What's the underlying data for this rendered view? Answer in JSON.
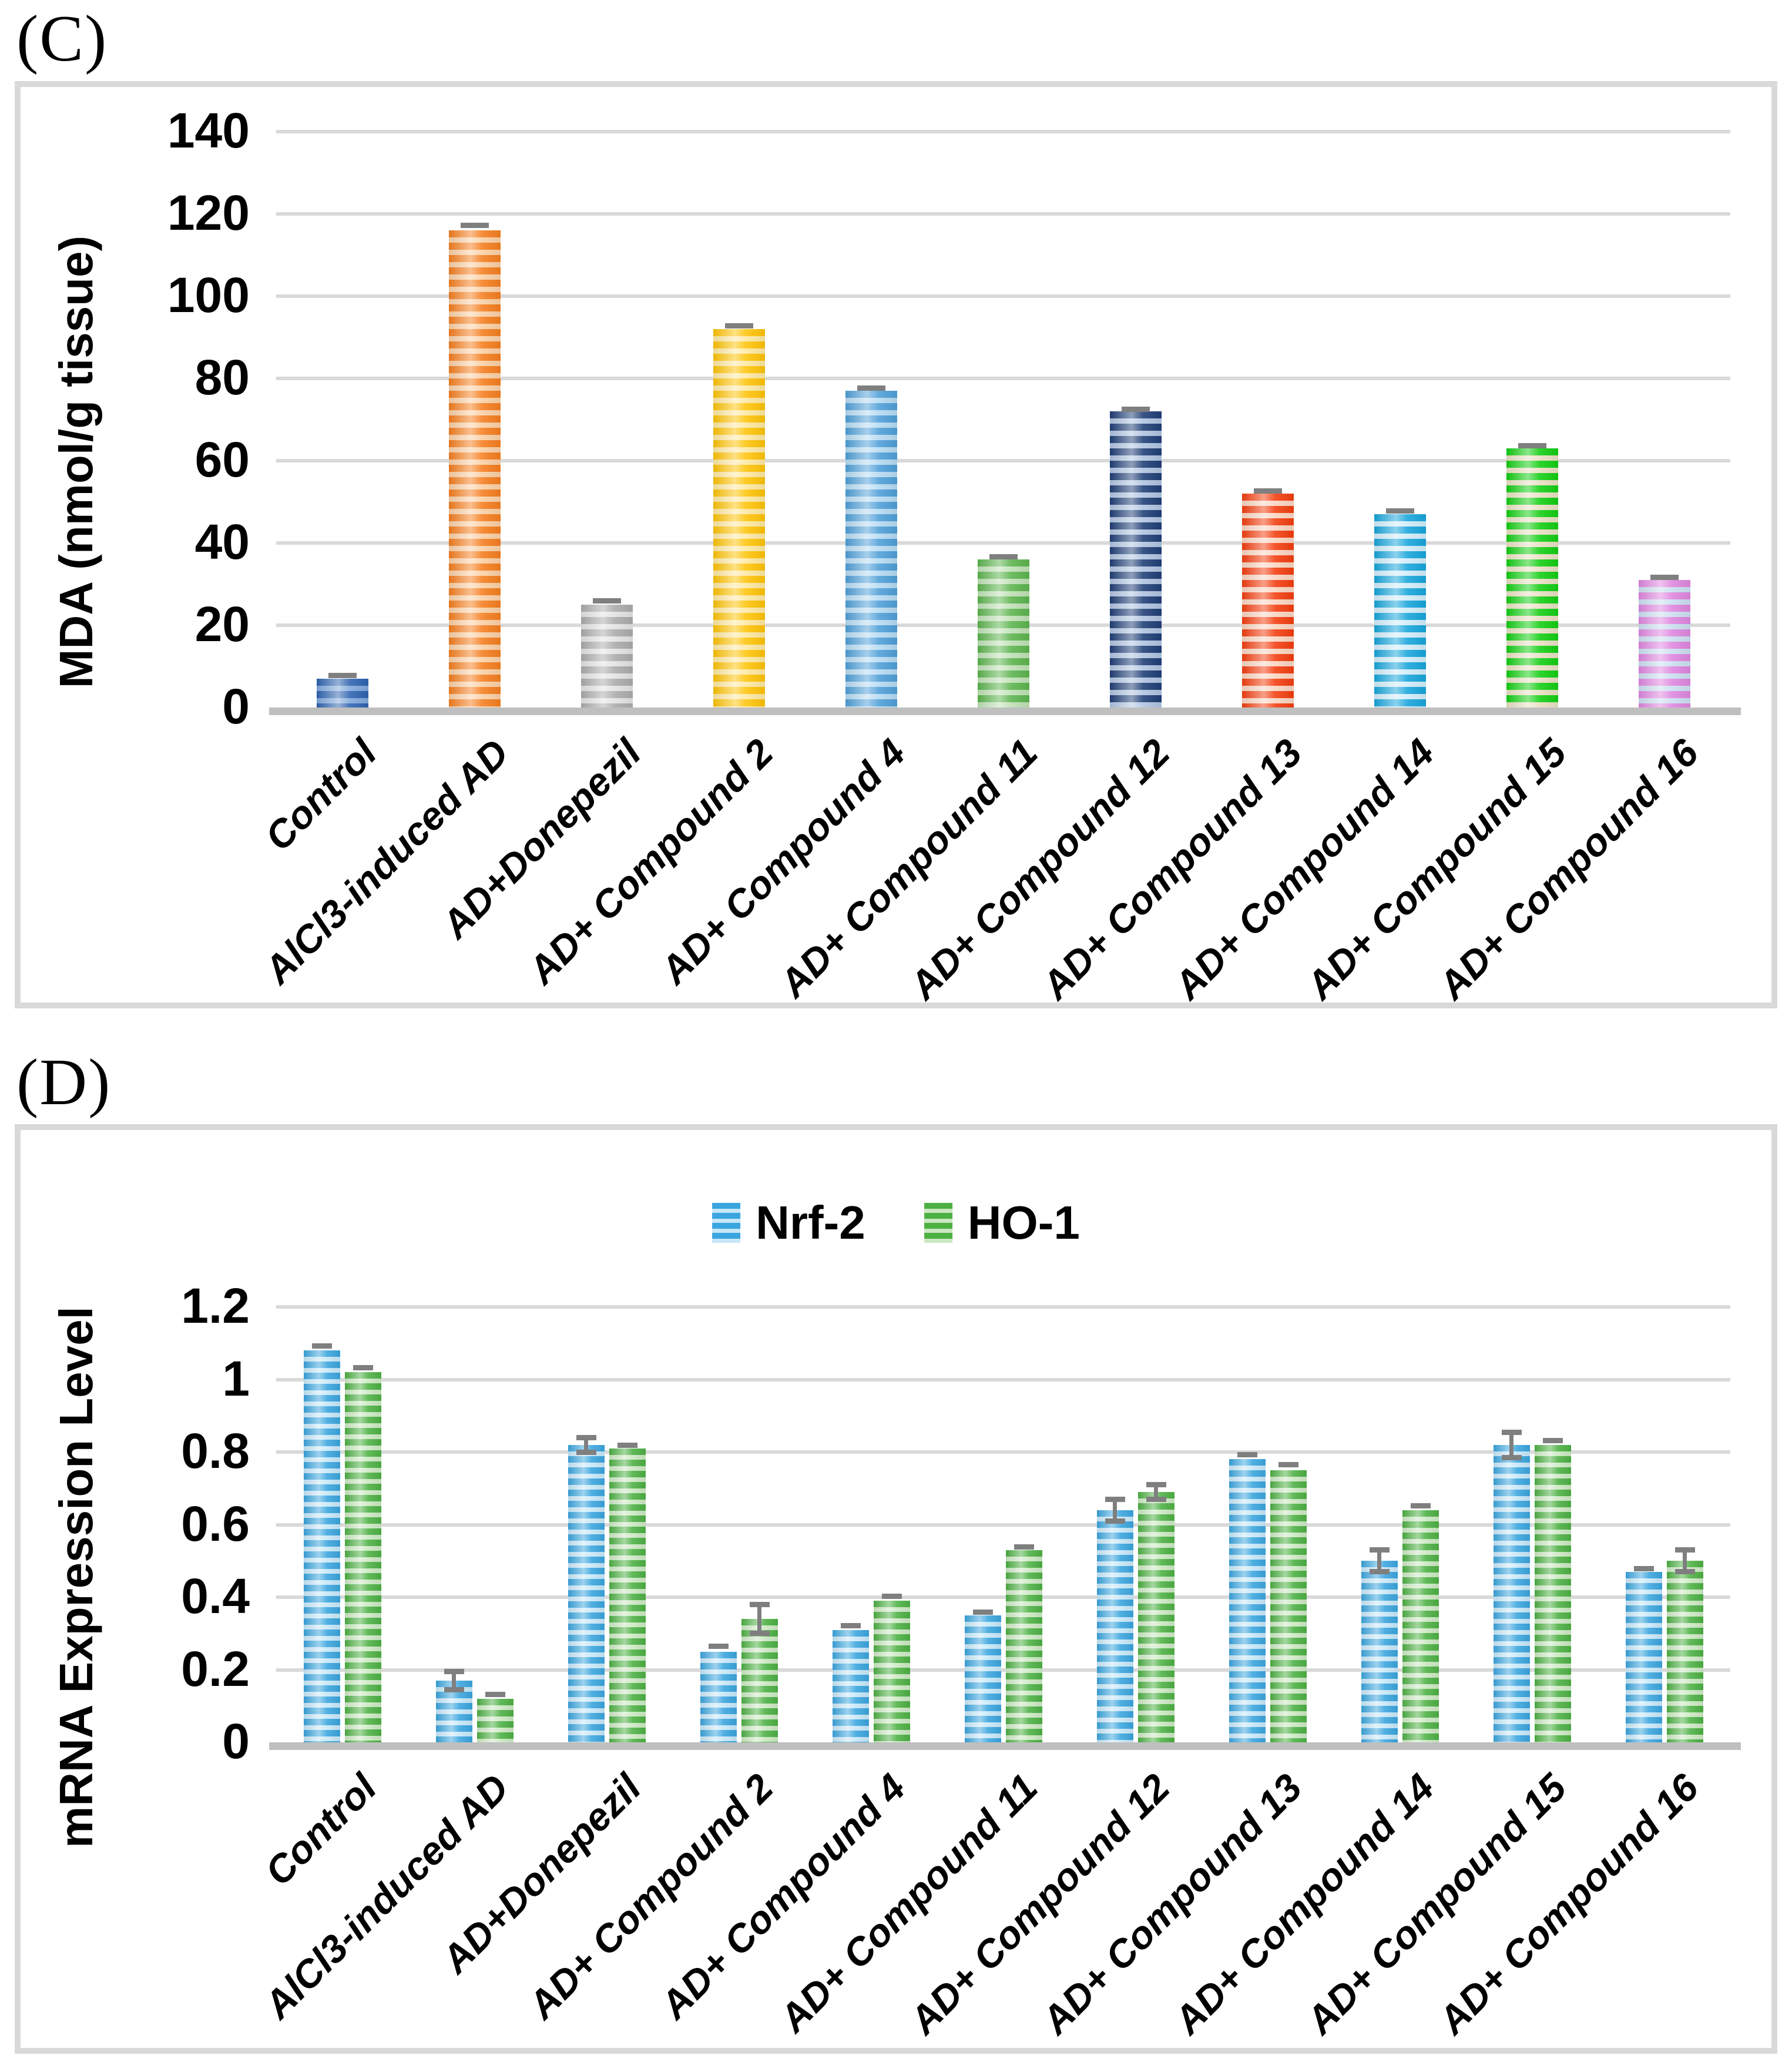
{
  "panels": [
    {
      "label": "(C)"
    },
    {
      "label": "(D)"
    }
  ],
  "colors": {
    "grid": "#D9D9D9",
    "axis_line": "#BFBFBF",
    "error_bar": "#7F7F7F",
    "panel_border": "#D9D9D9",
    "text": "#000000"
  },
  "chart_data": [
    {
      "type": "bar",
      "panel": "C",
      "ylabel": "MDA (nmol/g tissue)",
      "ylim": [
        0,
        140
      ],
      "ytick_step": 20,
      "ytick_labels": [
        "0",
        "20",
        "40",
        "60",
        "80",
        "100",
        "120",
        "140"
      ],
      "grid": true,
      "legend": null,
      "categories": [
        "Control",
        "AlCl3-induced AD",
        "AD+Donepezil",
        "AD+ Compound 2",
        "AD+ Compound 4",
        "AD+ Compound 11",
        "AD+ Compound 12",
        "AD+ Compound 13",
        "AD+ Compound 14",
        "AD+ Compound 15",
        "AD+ Compound 16"
      ],
      "series": [
        {
          "name": "MDA",
          "values": [
            7,
            116,
            25,
            92,
            77,
            36,
            72,
            52,
            47,
            63,
            31
          ],
          "errors": [
            0.8,
            1.2,
            1.0,
            0.8,
            0.6,
            0.6,
            0.5,
            0.6,
            0.8,
            0.7,
            0.6
          ]
        }
      ],
      "bar_colors": [
        {
          "name": "blue",
          "main": "#2E63B0",
          "tint": "#7FA8DC"
        },
        {
          "name": "orange",
          "main": "#F57E1F",
          "tint": "#FBCFA4"
        },
        {
          "name": "gray",
          "main": "#ABABAB",
          "tint": "#E2E2E2"
        },
        {
          "name": "yellow",
          "main": "#FEC307",
          "tint": "#FEE8A0"
        },
        {
          "name": "light-blue",
          "main": "#4E9FD8",
          "tint": "#B5DAF2"
        },
        {
          "name": "green",
          "main": "#5CB44E",
          "tint": "#BEE0B4"
        },
        {
          "name": "navy",
          "main": "#1F3E76",
          "tint": "#AFC3E0"
        },
        {
          "name": "red-orange",
          "main": "#F33D0F",
          "tint": "#FAD4C0"
        },
        {
          "name": "cyan",
          "main": "#16A5DB",
          "tint": "#CFECF9"
        },
        {
          "name": "bright-green",
          "main": "#12CE12",
          "tint": "#E8DFC2"
        },
        {
          "name": "violet",
          "main": "#DF86DF",
          "tint": "#CBDEF0"
        }
      ]
    },
    {
      "type": "bar",
      "panel": "D",
      "ylabel": "mRNA Expression Level",
      "ylim": [
        0,
        1.2
      ],
      "ytick_step": 0.2,
      "ytick_labels": [
        "0",
        "0.2",
        "0.4",
        "0.6",
        "0.8",
        "1",
        "1.2"
      ],
      "grid": true,
      "legend": [
        "Nrf-2",
        "HO-1"
      ],
      "legend_position": "top",
      "categories": [
        "Control",
        "AlCl3-induced AD",
        "AD+Donepezil",
        "AD+ Compound 2",
        "AD+ Compound 4",
        "AD+ Compound 11",
        "AD+ Compound 12",
        "AD+ Compound 13",
        "AD+ Compound 14",
        "AD+ Compound 15",
        "AD+ Compound 16"
      ],
      "series": [
        {
          "name": "Nrf-2",
          "color": {
            "main": "#3AA5DE",
            "tint": "#C6E7F8"
          },
          "values": [
            1.08,
            0.17,
            0.82,
            0.25,
            0.31,
            0.35,
            0.64,
            0.78,
            0.5,
            0.82,
            0.47
          ],
          "errors": [
            0.012,
            0.025,
            0.02,
            0.015,
            0.012,
            0.008,
            0.03,
            0.012,
            0.03,
            0.035,
            0.008
          ]
        },
        {
          "name": "HO-1",
          "color": {
            "main": "#4CB043",
            "tint": "#CBE8C2"
          },
          "values": [
            1.02,
            0.12,
            0.81,
            0.34,
            0.39,
            0.53,
            0.69,
            0.75,
            0.64,
            0.82,
            0.5
          ],
          "errors": [
            0.012,
            0.012,
            0.008,
            0.04,
            0.012,
            0.008,
            0.02,
            0.015,
            0.012,
            0.012,
            0.03
          ]
        }
      ]
    }
  ]
}
